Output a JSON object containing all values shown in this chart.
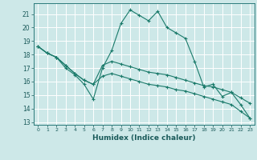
{
  "title": "",
  "xlabel": "Humidex (Indice chaleur)",
  "background_color": "#cde8e8",
  "grid_color": "#ffffff",
  "line_color": "#1a7a6a",
  "xlim": [
    -0.5,
    23.5
  ],
  "ylim": [
    12.8,
    21.8
  ],
  "yticks": [
    13,
    14,
    15,
    16,
    17,
    18,
    19,
    20,
    21
  ],
  "xticks": [
    0,
    1,
    2,
    3,
    4,
    5,
    6,
    7,
    8,
    9,
    10,
    11,
    12,
    13,
    14,
    15,
    16,
    17,
    18,
    19,
    20,
    21,
    22,
    23
  ],
  "series": [
    {
      "x": [
        0,
        1,
        2,
        3,
        4,
        5,
        6,
        7,
        8,
        9,
        10,
        11,
        12,
        13,
        14,
        15,
        16,
        17,
        18,
        19,
        20,
        21,
        22,
        23
      ],
      "y": [
        18.6,
        18.1,
        17.8,
        17.0,
        16.5,
        15.8,
        14.7,
        17.0,
        18.3,
        20.3,
        21.3,
        20.9,
        20.5,
        21.2,
        20.0,
        19.6,
        19.2,
        17.5,
        15.6,
        15.8,
        14.9,
        15.2,
        14.3,
        13.3
      ]
    },
    {
      "x": [
        0,
        1,
        2,
        3,
        4,
        5,
        6,
        7,
        8,
        9,
        10,
        11,
        12,
        13,
        14,
        15,
        16,
        17,
        18,
        19,
        20,
        21,
        22,
        23
      ],
      "y": [
        18.6,
        18.1,
        17.8,
        17.2,
        16.6,
        16.1,
        15.8,
        17.2,
        17.5,
        17.3,
        17.1,
        16.9,
        16.7,
        16.6,
        16.5,
        16.3,
        16.1,
        15.9,
        15.7,
        15.6,
        15.4,
        15.2,
        14.8,
        14.4
      ]
    },
    {
      "x": [
        0,
        1,
        2,
        3,
        4,
        5,
        6,
        7,
        8,
        9,
        10,
        11,
        12,
        13,
        14,
        15,
        16,
        17,
        18,
        19,
        20,
        21,
        22,
        23
      ],
      "y": [
        18.6,
        18.1,
        17.8,
        17.2,
        16.6,
        16.1,
        15.8,
        16.4,
        16.6,
        16.4,
        16.2,
        16.0,
        15.8,
        15.7,
        15.6,
        15.4,
        15.3,
        15.1,
        14.9,
        14.7,
        14.5,
        14.3,
        13.8,
        13.3
      ]
    }
  ]
}
